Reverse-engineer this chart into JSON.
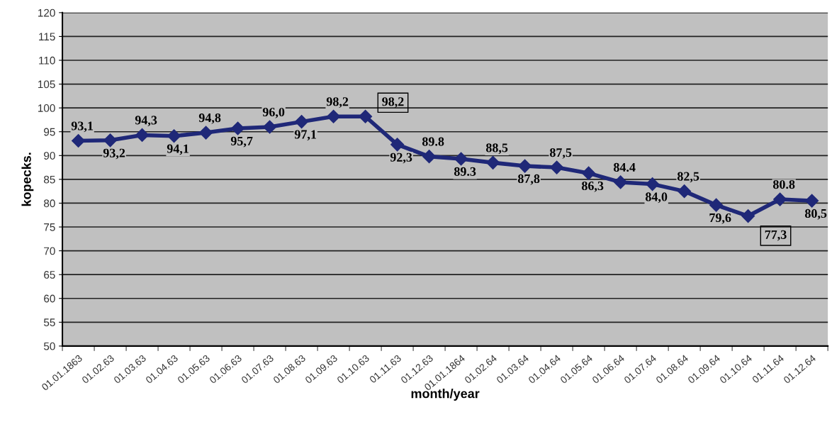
{
  "chart_data": {
    "type": "line",
    "xlabel": "month/year",
    "ylabel": "kopecks.",
    "categories": [
      "01.01.1863",
      "01.02.63",
      "01.03.63",
      "01.04.63",
      "01.05.63",
      "01.06.63",
      "01.07.63",
      "01.08.63",
      "01.09.63",
      "01.10.63",
      "01.11.63",
      "01.12.63",
      "01.01.1864",
      "01.02.64",
      "01.03.64",
      "01.04.64",
      "01.05.64",
      "01.06.64",
      "01.07.64",
      "01.08.64",
      "01.09.64",
      "01.10.64",
      "01.11.64",
      "01.12.64"
    ],
    "series": [
      {
        "color": "#1f2878",
        "values": [
          93.1,
          93.2,
          94.3,
          94.1,
          94.8,
          95.7,
          96.0,
          97.1,
          98.2,
          98.2,
          92.3,
          89.8,
          89.3,
          88.5,
          87.8,
          87.5,
          86.3,
          84.4,
          84.0,
          82.5,
          79.6,
          77.3,
          80.8,
          80.5
        ],
        "value_labels": [
          "93,1",
          "93,2",
          "94,3",
          "94,1",
          "94,8",
          "95,7",
          "96,0",
          "97,1",
          "98,2",
          null,
          "92,3",
          "89.8",
          "89.3",
          "88,5",
          "87,8",
          "87,5",
          "86,3",
          "84.4",
          "84,0",
          "82,5",
          "79,6",
          null,
          "80.8",
          "80,5"
        ]
      }
    ],
    "annotations": [
      {
        "text": "98,2",
        "x": "01.10.63",
        "y": 98.2
      },
      {
        "text": "77,3",
        "x": "01.10.64",
        "y": 77.3
      }
    ],
    "ylim": [
      50,
      120
    ],
    "yticks": [
      50,
      55,
      60,
      65,
      70,
      75,
      80,
      85,
      90,
      95,
      100,
      105,
      110,
      115,
      120
    ],
    "grid": "y",
    "marker": "diamond",
    "line_style": "solid"
  }
}
